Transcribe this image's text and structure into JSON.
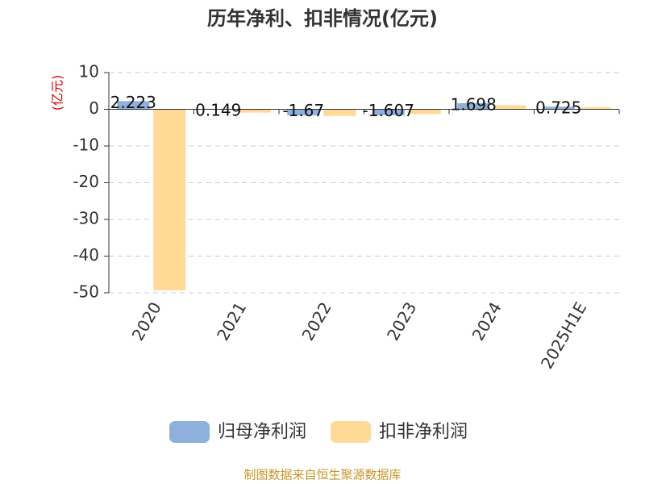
{
  "chart_data": {
    "type": "bar",
    "title": "历年净利、扣非情况(亿元)",
    "y_axis_label": "(亿元)",
    "categories": [
      "2020",
      "2021",
      "2022",
      "2023",
      "2024",
      "2025H1E"
    ],
    "series": [
      {
        "name": "归母净利润",
        "color": "#8eb0dc",
        "values": [
          2.223,
          0.149,
          -1.67,
          -1.607,
          1.698,
          0.725
        ]
      },
      {
        "name": "扣非净利润",
        "color": "#ffd996",
        "values": [
          -49.3,
          -0.9,
          -1.8,
          -1.3,
          1.1,
          0.6
        ]
      }
    ],
    "ylim": [
      -50,
      10
    ],
    "yticks": [
      -50,
      -40,
      -30,
      -20,
      -10,
      0,
      10
    ],
    "grid": true,
    "legend": "bottom",
    "source": "制图数据来自恒生聚源数据库"
  }
}
